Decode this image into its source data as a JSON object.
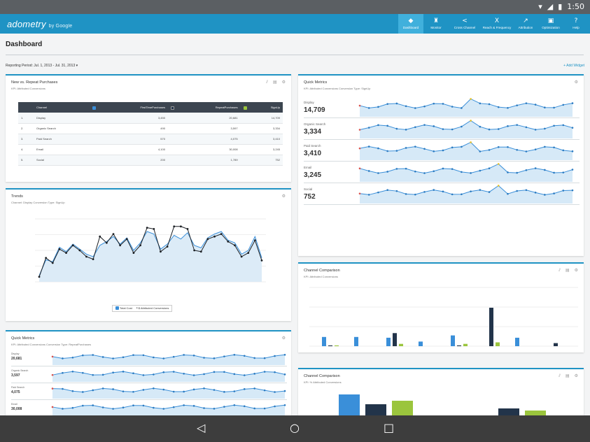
{
  "statusbar": {
    "time": "1:50",
    "icons": [
      "wifi-icon",
      "signal-icon",
      "battery-icon"
    ]
  },
  "app": {
    "logo": "adometry",
    "logo_suffix": "by Google"
  },
  "nav": [
    {
      "label": "Dashboard",
      "icon": "◆",
      "active": true
    },
    {
      "label": "Monitor",
      "icon": "♜"
    },
    {
      "label": "Cross Channel",
      "icon": "<"
    },
    {
      "label": "Reach & Frequency",
      "icon": "X"
    },
    {
      "label": "Attribution",
      "icon": "↗"
    },
    {
      "label": "Optimization",
      "icon": "▣"
    },
    {
      "label": "Help",
      "icon": "?"
    }
  ],
  "page": {
    "title": "Dashboard",
    "reporting_period": "Reporting Period: Jul. 1, 2013 - Jul. 31, 2013 ▾",
    "add_widget": "+ Add Widget"
  },
  "newrepeat": {
    "title": "New vs. Repeat Purchases",
    "subtitle": "KPI: Attributed Conversions",
    "headers": [
      "Channel",
      "FirstTimePurchases",
      "RepeatPurchases",
      "SignUp"
    ],
    "rows": [
      [
        "1.",
        "Display",
        "3,450",
        "20,681",
        "14,709"
      ],
      [
        "2.",
        "Organic Search",
        "490",
        "3,597",
        "3,334"
      ],
      [
        "3.",
        "Paid Search",
        "570",
        "4,075",
        "3,410"
      ],
      [
        "4.",
        "Email",
        "4,100",
        "30,008",
        "3,245"
      ],
      [
        "5.",
        "Social",
        "200",
        "1,789",
        "752"
      ]
    ]
  },
  "trends": {
    "title": "Trends",
    "subtitle": "Channel: Display     Conversion Type: SignUp",
    "legend": [
      "Total Cost",
      "$ Attributed Conversions"
    ]
  },
  "quick1": {
    "title": "Quick Metrics",
    "subtitle": "KPI: Attributed Conversions     Conversion Type: SignUp",
    "rows": [
      {
        "label": "Display",
        "value": "14,709"
      },
      {
        "label": "Organic Search",
        "value": "3,334"
      },
      {
        "label": "Paid Search",
        "value": "3,410"
      },
      {
        "label": "Email",
        "value": "3,245"
      },
      {
        "label": "Social",
        "value": "752"
      }
    ]
  },
  "channel1": {
    "title": "Channel Comparison",
    "subtitle": "KPI: Attributed Conversions"
  },
  "quick2": {
    "title": "Quick Metrics",
    "subtitle": "KPI: Attributed Conversions     Conversion Type: RepeatPurchases",
    "rows": [
      {
        "label": "Display",
        "value": "20,681"
      },
      {
        "label": "Organic Search",
        "value": "3,597"
      },
      {
        "label": "Paid Search",
        "value": "4,075"
      },
      {
        "label": "Email",
        "value": "30,008"
      }
    ]
  },
  "channel2": {
    "title": "Channel Comparison",
    "subtitle": "KPI: % Attributed Conversions"
  },
  "colors": {
    "blue": "#3a8fd9",
    "dark": "#22344a",
    "green": "#9bc53d",
    "accent": "#1f93c4"
  },
  "androidnav": {
    "back": "◁",
    "home": "○",
    "recents": "□"
  }
}
